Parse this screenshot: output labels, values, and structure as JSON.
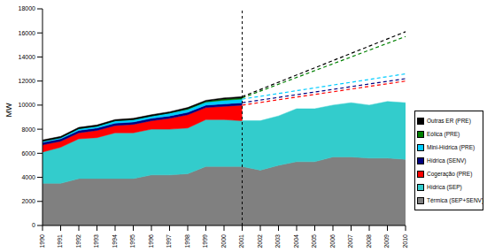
{
  "chart_data": {
    "type": "area",
    "stacked": true,
    "ylabel": "MW",
    "legend": "right",
    "categories": [
      "1990",
      "1991",
      "1992",
      "1993",
      "1994",
      "1995",
      "1996",
      "1997",
      "1998",
      "1999",
      "2000",
      "2001",
      "2002",
      "2003",
      "2004",
      "2005",
      "2006",
      "2007",
      "2008",
      "2009",
      "2010"
    ],
    "ylim": [
      0,
      18000
    ],
    "yticks": [
      0,
      2000,
      4000,
      6000,
      8000,
      10000,
      12000,
      14000,
      16000,
      18000
    ],
    "series": [
      {
        "name": "Térmica (SEP+SENV)",
        "color": "#808080",
        "values": [
          3500,
          3500,
          3900,
          3900,
          3900,
          3900,
          4200,
          4200,
          4300,
          4900,
          4900,
          4900,
          4600,
          5000,
          5300,
          5300,
          5700,
          5700,
          5600,
          5600,
          5500
        ]
      },
      {
        "name": "Hídrica (SEP)",
        "color": "#33CCCC",
        "values": [
          2600,
          3000,
          3300,
          3400,
          3800,
          3800,
          3800,
          3800,
          3800,
          3900,
          3900,
          3800,
          4100,
          4100,
          4400,
          4400,
          4300,
          4500,
          4400,
          4700,
          4700
        ]
      },
      {
        "name": "Cogeração (PRE)",
        "color": "#FF0000",
        "line_style": "dashed",
        "values": [
          600,
          500,
          500,
          600,
          600,
          700,
          700,
          900,
          1100,
          1000,
          1100,
          1300,
          null,
          null,
          null,
          null,
          null,
          null,
          null,
          null,
          1800
        ]
      },
      {
        "name": "Hídrica (SENV)",
        "color": "#000080",
        "line_style": "dashed",
        "values": [
          200,
          200,
          200,
          200,
          200,
          200,
          200,
          200,
          200,
          200,
          200,
          200,
          null,
          null,
          null,
          null,
          null,
          null,
          null,
          null,
          200
        ]
      },
      {
        "name": "Mini-Hídrica (PRE)",
        "color": "#00CCFF",
        "line_style": "dashed",
        "values": [
          100,
          100,
          150,
          150,
          200,
          200,
          200,
          250,
          250,
          250,
          300,
          300,
          null,
          null,
          null,
          null,
          null,
          null,
          null,
          null,
          400
        ]
      },
      {
        "name": "Eólica (PRE)",
        "color": "#008000",
        "line_style": "dashed",
        "values": [
          0,
          0,
          0,
          0,
          0,
          0,
          0,
          0,
          50,
          50,
          100,
          100,
          null,
          null,
          null,
          null,
          null,
          null,
          null,
          null,
          3100
        ]
      },
      {
        "name": "Outras ER (PRE)",
        "color": "#000000",
        "line_style": "dashed",
        "values": [
          100,
          100,
          100,
          100,
          100,
          100,
          100,
          100,
          100,
          100,
          100,
          100,
          null,
          null,
          null,
          null,
          null,
          null,
          null,
          null,
          400
        ]
      }
    ]
  }
}
